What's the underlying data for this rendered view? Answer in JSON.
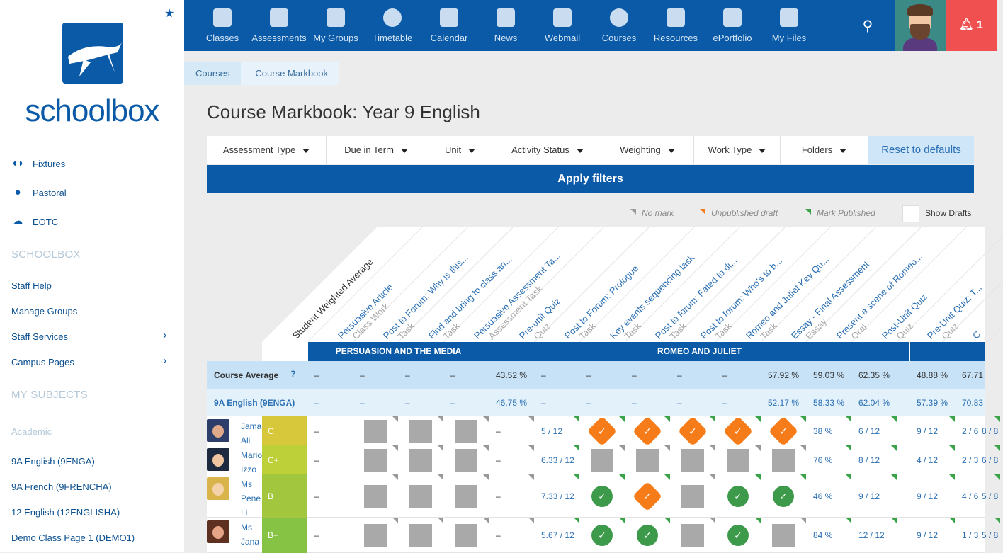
{
  "sidebar": {
    "logo_text": "schoolbox",
    "links": [
      {
        "label": "Fixtures",
        "icon": "fixtures-icon"
      },
      {
        "label": "Pastoral",
        "icon": "person-icon"
      },
      {
        "label": "EOTC",
        "icon": "weather-icon"
      }
    ],
    "section_schoolbox": "SCHOOLBOX",
    "schoolbox_links": [
      "Staff Help",
      "Manage Groups",
      "Staff Services",
      "Campus Pages"
    ],
    "section_subjects": "MY SUBJECTS",
    "subjects_group": "Academic",
    "subjects": [
      "9A English (9ENGA)",
      "9A French (9FRENCHA)",
      "12 English (12ENGLISHA)",
      "Demo Class Page 1 (DEMO1)"
    ]
  },
  "topnav": {
    "items": [
      "Classes",
      "Assessments",
      "My Groups",
      "Timetable",
      "Calendar",
      "News",
      "Webmail",
      "Courses",
      "Resources",
      "ePortfolio",
      "My Files"
    ],
    "notifications": "1"
  },
  "breadcrumb": [
    "Courses",
    "Course Markbook"
  ],
  "page_title": "Course Markbook: Year 9 English",
  "filters": [
    "Assessment Type",
    "Due in Term",
    "Unit",
    "Activity Status",
    "Weighting",
    "Work Type",
    "Folders"
  ],
  "reset_label": "Reset to defaults",
  "apply_label": "Apply filters",
  "legend": {
    "no_mark": "No mark",
    "unpublished": "Unpublished draft",
    "published": "Mark Published",
    "show_drafts": "Show Drafts"
  },
  "colors": {
    "primary": "#0a5aa8",
    "unpublished": "#f57c18",
    "published": "#3aa34a",
    "notification": "#f0504f"
  },
  "columns": [
    {
      "title": "Student Weighted Average",
      "type": ""
    },
    {
      "title": "Persuasive Article",
      "type": "Class Work"
    },
    {
      "title": "Post to Forum: Why is this...",
      "type": "Task"
    },
    {
      "title": "Find and bring to class an...",
      "type": "Task"
    },
    {
      "title": "Persuasive Assessment Ta...",
      "type": "Assessment Task"
    },
    {
      "title": "Pre-unit Quiz",
      "type": "Quiz"
    },
    {
      "title": "Post to Forum: Prologue",
      "type": "Task"
    },
    {
      "title": "Key events sequencing task",
      "type": "Task"
    },
    {
      "title": "Post to forum: Fated to di...",
      "type": "Task"
    },
    {
      "title": "Post to forum: Who's to b...",
      "type": "Task"
    },
    {
      "title": "Romeo and Juliet Key Qu...",
      "type": "Task"
    },
    {
      "title": "Essay - Final Assessment",
      "type": "Essay"
    },
    {
      "title": "Present a scene of Romeo...",
      "type": "Oral"
    },
    {
      "title": "Post-Unit Quiz",
      "type": "Quiz"
    },
    {
      "title": "Pre-Unit Quiz: T...",
      "type": "Quiz"
    },
    {
      "title": "C",
      "type": ""
    }
  ],
  "units": [
    "PERSUASION AND THE MEDIA",
    "ROMEO AND JULIET"
  ],
  "course_average": {
    "label": "Course Average",
    "help": "?",
    "values": [
      "–",
      "–",
      "–",
      "–",
      "43.52 %",
      "–",
      "–",
      "–",
      "–",
      "–",
      "57.92 %",
      "59.03 %",
      "62.35 %",
      "48.88 %",
      "67.71"
    ]
  },
  "class_row": {
    "label": "9A English (9ENGA)",
    "values": [
      "–",
      "–",
      "–",
      "–",
      "46.75 %",
      "–",
      "–",
      "–",
      "–",
      "–",
      "52.17 %",
      "58.33 %",
      "62.04 %",
      "57.39 %",
      "70.83"
    ]
  },
  "students": [
    {
      "name": [
        "Jama",
        "Ali"
      ],
      "grade": "C",
      "grade_color": "#d6c83a",
      "cells": [
        [
          "text",
          "–"
        ],
        [
          "gray",
          ""
        ],
        [
          "gray",
          ""
        ],
        [
          "gray",
          ""
        ],
        [
          "text",
          "–"
        ],
        [
          "text",
          "5 / 12"
        ],
        [
          "orange",
          "✓"
        ],
        [
          "orange",
          "✓"
        ],
        [
          "orange",
          "✓"
        ],
        [
          "orange",
          "✓"
        ],
        [
          "orange",
          "✓"
        ],
        [
          "text",
          "38 %"
        ],
        [
          "text",
          "6 / 12"
        ],
        [
          "text",
          "9 / 12"
        ],
        [
          "text",
          "2 / 6"
        ],
        [
          "text",
          "8 / 8"
        ]
      ]
    },
    {
      "name": [
        "Mario",
        "Izzo"
      ],
      "grade": "C+",
      "grade_color": "#bdd03a",
      "cells": [
        [
          "text",
          "–"
        ],
        [
          "gray",
          ""
        ],
        [
          "gray",
          ""
        ],
        [
          "gray",
          ""
        ],
        [
          "text",
          "–"
        ],
        [
          "text",
          "6.33 / 12"
        ],
        [
          "gray",
          ""
        ],
        [
          "gray",
          ""
        ],
        [
          "gray",
          ""
        ],
        [
          "gray",
          ""
        ],
        [
          "gray",
          ""
        ],
        [
          "text",
          "76 %"
        ],
        [
          "text",
          "8 / 12"
        ],
        [
          "text",
          "4 / 12"
        ],
        [
          "text",
          "2 / 3"
        ],
        [
          "text",
          "6 / 8"
        ]
      ]
    },
    {
      "name": [
        "Ms",
        "Pene",
        "Li"
      ],
      "grade": "B",
      "grade_color": "#a2c73e",
      "cells": [
        [
          "text",
          "–"
        ],
        [
          "gray",
          ""
        ],
        [
          "gray",
          ""
        ],
        [
          "gray",
          ""
        ],
        [
          "text",
          "–"
        ],
        [
          "text",
          "7.33 / 12"
        ],
        [
          "green",
          "✓"
        ],
        [
          "orange",
          "✓"
        ],
        [
          "gray",
          ""
        ],
        [
          "green",
          "✓"
        ],
        [
          "green",
          "✓"
        ],
        [
          "text",
          "46 %"
        ],
        [
          "text",
          "9 / 12"
        ],
        [
          "text",
          "9 / 12"
        ],
        [
          "text",
          "4 / 6"
        ],
        [
          "text",
          "5 / 8"
        ]
      ]
    },
    {
      "name": [
        "Ms",
        "Jana"
      ],
      "grade": "B+",
      "grade_color": "#86c243",
      "cells": [
        [
          "text",
          "–"
        ],
        [
          "gray",
          ""
        ],
        [
          "gray",
          ""
        ],
        [
          "gray",
          ""
        ],
        [
          "text",
          "–"
        ],
        [
          "text",
          "5.67 / 12"
        ],
        [
          "green",
          "✓"
        ],
        [
          "green",
          "✓"
        ],
        [
          "gray",
          ""
        ],
        [
          "green",
          "✓"
        ],
        [
          "gray",
          ""
        ],
        [
          "text",
          "84 %"
        ],
        [
          "text",
          "12 / 12"
        ],
        [
          "text",
          "9 / 12"
        ],
        [
          "text",
          "1 / 3"
        ],
        [
          "text",
          "5 / 8"
        ]
      ]
    }
  ]
}
